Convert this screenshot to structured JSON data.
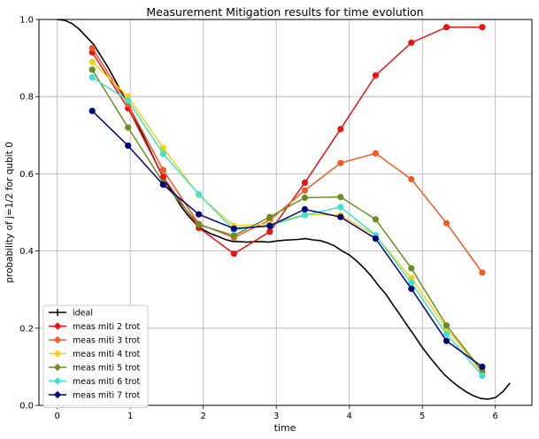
{
  "chart_data": {
    "type": "line",
    "title": "Measurement Mitigation results for time evolution",
    "xlabel": "time",
    "ylabel": "probability of j=1/2 for qubit 0",
    "xlim": [
      -0.25,
      6.5
    ],
    "ylim": [
      0.0,
      1.0
    ],
    "xticks": [
      0,
      1,
      2,
      3,
      4,
      5,
      6
    ],
    "xtick_labels": [
      "0",
      "1",
      "2",
      "3",
      "4",
      "5",
      "6"
    ],
    "yticks": [
      0.0,
      0.2,
      0.4,
      0.6,
      0.8,
      1.0
    ],
    "ytick_labels": [
      "0.0",
      "0.2",
      "0.4",
      "0.6",
      "0.8",
      "1.0"
    ],
    "grid": true,
    "legend_position": "lower-left",
    "ideal": {
      "name": "ideal",
      "color": "#000000",
      "x": [
        0.0,
        0.1,
        0.2,
        0.3,
        0.4,
        0.5,
        0.6,
        0.7,
        0.8,
        0.9,
        1.0,
        1.1,
        1.2,
        1.3,
        1.4,
        1.5,
        1.6,
        1.7,
        1.8,
        1.9,
        2.0,
        2.1,
        2.2,
        2.3,
        2.4,
        2.5,
        2.6,
        2.7,
        2.8,
        2.9,
        3.0,
        3.1,
        3.2,
        3.3,
        3.4,
        3.5,
        3.6,
        3.7,
        3.8,
        3.9,
        4.0,
        4.1,
        4.2,
        4.3,
        4.4,
        4.5,
        4.6,
        4.7,
        4.8,
        4.9,
        5.0,
        5.1,
        5.2,
        5.3,
        5.4,
        5.5,
        5.6,
        5.7,
        5.8,
        5.9,
        6.0,
        6.1,
        6.2
      ],
      "y": [
        1.0,
        0.998,
        0.99,
        0.975,
        0.955,
        0.935,
        0.905,
        0.875,
        0.84,
        0.805,
        0.77,
        0.73,
        0.69,
        0.65,
        0.61,
        0.575,
        0.545,
        0.515,
        0.49,
        0.47,
        0.455,
        0.445,
        0.438,
        0.43,
        0.425,
        0.424,
        0.423,
        0.424,
        0.424,
        0.423,
        0.426,
        0.428,
        0.429,
        0.43,
        0.432,
        0.429,
        0.427,
        0.421,
        0.413,
        0.4,
        0.39,
        0.374,
        0.356,
        0.335,
        0.31,
        0.288,
        0.26,
        0.233,
        0.205,
        0.178,
        0.15,
        0.125,
        0.102,
        0.08,
        0.063,
        0.048,
        0.035,
        0.025,
        0.018,
        0.016,
        0.02,
        0.035,
        0.058
      ]
    },
    "x": [
      0.48,
      0.97,
      1.45,
      1.94,
      2.42,
      2.91,
      3.39,
      3.88,
      4.36,
      4.85,
      5.33,
      5.82
    ],
    "series": [
      {
        "name": "meas miti 2 trot",
        "color": "#ee1111",
        "values": [
          0.915,
          0.77,
          0.592,
          0.46,
          0.393,
          0.45,
          0.577,
          0.716,
          0.855,
          0.94,
          0.98,
          0.98
        ]
      },
      {
        "name": "meas miti 3 trot",
        "color": "#f15a22",
        "values": [
          0.926,
          0.78,
          0.61,
          0.47,
          0.435,
          0.48,
          0.557,
          0.628,
          0.653,
          0.586,
          0.472,
          0.344
        ]
      },
      {
        "name": "meas miti 4 trot",
        "color": "#f5d211",
        "values": [
          0.89,
          0.8,
          0.667,
          0.545,
          0.465,
          0.47,
          0.495,
          0.493,
          0.44,
          0.33,
          0.2,
          0.083
        ]
      },
      {
        "name": "meas miti 5 trot",
        "color": "#6b8e23",
        "values": [
          0.87,
          0.72,
          0.578,
          0.468,
          0.44,
          0.488,
          0.538,
          0.54,
          0.482,
          0.355,
          0.207,
          0.088
        ]
      },
      {
        "name": "meas miti 6 trot",
        "color": "#40e0d0",
        "values": [
          0.85,
          0.79,
          0.652,
          0.547,
          0.455,
          0.467,
          0.493,
          0.514,
          0.441,
          0.318,
          0.185,
          0.077
        ]
      },
      {
        "name": "meas miti 7 trot",
        "color": "#000080",
        "values": [
          0.763,
          0.673,
          0.572,
          0.495,
          0.458,
          0.465,
          0.508,
          0.488,
          0.432,
          0.302,
          0.167,
          0.1
        ]
      }
    ]
  }
}
